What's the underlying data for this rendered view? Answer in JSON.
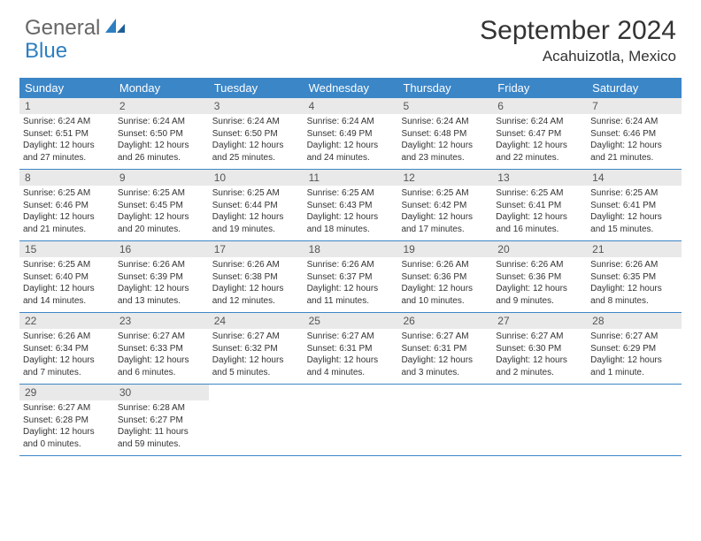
{
  "brand": {
    "part1": "General",
    "part2": "Blue",
    "color_general": "#666666",
    "color_blue": "#2d7fc1"
  },
  "title": "September 2024",
  "location": "Acahuizotla, Mexico",
  "header_color": "#3b86c7",
  "daynum_bg": "#e9e9e9",
  "days_of_week": [
    "Sunday",
    "Monday",
    "Tuesday",
    "Wednesday",
    "Thursday",
    "Friday",
    "Saturday"
  ],
  "weeks": [
    [
      {
        "n": "1",
        "sunrise": "6:24 AM",
        "sunset": "6:51 PM",
        "dl1": "12 hours",
        "dl2": "and 27 minutes."
      },
      {
        "n": "2",
        "sunrise": "6:24 AM",
        "sunset": "6:50 PM",
        "dl1": "12 hours",
        "dl2": "and 26 minutes."
      },
      {
        "n": "3",
        "sunrise": "6:24 AM",
        "sunset": "6:50 PM",
        "dl1": "12 hours",
        "dl2": "and 25 minutes."
      },
      {
        "n": "4",
        "sunrise": "6:24 AM",
        "sunset": "6:49 PM",
        "dl1": "12 hours",
        "dl2": "and 24 minutes."
      },
      {
        "n": "5",
        "sunrise": "6:24 AM",
        "sunset": "6:48 PM",
        "dl1": "12 hours",
        "dl2": "and 23 minutes."
      },
      {
        "n": "6",
        "sunrise": "6:24 AM",
        "sunset": "6:47 PM",
        "dl1": "12 hours",
        "dl2": "and 22 minutes."
      },
      {
        "n": "7",
        "sunrise": "6:24 AM",
        "sunset": "6:46 PM",
        "dl1": "12 hours",
        "dl2": "and 21 minutes."
      }
    ],
    [
      {
        "n": "8",
        "sunrise": "6:25 AM",
        "sunset": "6:46 PM",
        "dl1": "12 hours",
        "dl2": "and 21 minutes."
      },
      {
        "n": "9",
        "sunrise": "6:25 AM",
        "sunset": "6:45 PM",
        "dl1": "12 hours",
        "dl2": "and 20 minutes."
      },
      {
        "n": "10",
        "sunrise": "6:25 AM",
        "sunset": "6:44 PM",
        "dl1": "12 hours",
        "dl2": "and 19 minutes."
      },
      {
        "n": "11",
        "sunrise": "6:25 AM",
        "sunset": "6:43 PM",
        "dl1": "12 hours",
        "dl2": "and 18 minutes."
      },
      {
        "n": "12",
        "sunrise": "6:25 AM",
        "sunset": "6:42 PM",
        "dl1": "12 hours",
        "dl2": "and 17 minutes."
      },
      {
        "n": "13",
        "sunrise": "6:25 AM",
        "sunset": "6:41 PM",
        "dl1": "12 hours",
        "dl2": "and 16 minutes."
      },
      {
        "n": "14",
        "sunrise": "6:25 AM",
        "sunset": "6:41 PM",
        "dl1": "12 hours",
        "dl2": "and 15 minutes."
      }
    ],
    [
      {
        "n": "15",
        "sunrise": "6:25 AM",
        "sunset": "6:40 PM",
        "dl1": "12 hours",
        "dl2": "and 14 minutes."
      },
      {
        "n": "16",
        "sunrise": "6:26 AM",
        "sunset": "6:39 PM",
        "dl1": "12 hours",
        "dl2": "and 13 minutes."
      },
      {
        "n": "17",
        "sunrise": "6:26 AM",
        "sunset": "6:38 PM",
        "dl1": "12 hours",
        "dl2": "and 12 minutes."
      },
      {
        "n": "18",
        "sunrise": "6:26 AM",
        "sunset": "6:37 PM",
        "dl1": "12 hours",
        "dl2": "and 11 minutes."
      },
      {
        "n": "19",
        "sunrise": "6:26 AM",
        "sunset": "6:36 PM",
        "dl1": "12 hours",
        "dl2": "and 10 minutes."
      },
      {
        "n": "20",
        "sunrise": "6:26 AM",
        "sunset": "6:36 PM",
        "dl1": "12 hours",
        "dl2": "and 9 minutes."
      },
      {
        "n": "21",
        "sunrise": "6:26 AM",
        "sunset": "6:35 PM",
        "dl1": "12 hours",
        "dl2": "and 8 minutes."
      }
    ],
    [
      {
        "n": "22",
        "sunrise": "6:26 AM",
        "sunset": "6:34 PM",
        "dl1": "12 hours",
        "dl2": "and 7 minutes."
      },
      {
        "n": "23",
        "sunrise": "6:27 AM",
        "sunset": "6:33 PM",
        "dl1": "12 hours",
        "dl2": "and 6 minutes."
      },
      {
        "n": "24",
        "sunrise": "6:27 AM",
        "sunset": "6:32 PM",
        "dl1": "12 hours",
        "dl2": "and 5 minutes."
      },
      {
        "n": "25",
        "sunrise": "6:27 AM",
        "sunset": "6:31 PM",
        "dl1": "12 hours",
        "dl2": "and 4 minutes."
      },
      {
        "n": "26",
        "sunrise": "6:27 AM",
        "sunset": "6:31 PM",
        "dl1": "12 hours",
        "dl2": "and 3 minutes."
      },
      {
        "n": "27",
        "sunrise": "6:27 AM",
        "sunset": "6:30 PM",
        "dl1": "12 hours",
        "dl2": "and 2 minutes."
      },
      {
        "n": "28",
        "sunrise": "6:27 AM",
        "sunset": "6:29 PM",
        "dl1": "12 hours",
        "dl2": "and 1 minute."
      }
    ],
    [
      {
        "n": "29",
        "sunrise": "6:27 AM",
        "sunset": "6:28 PM",
        "dl1": "12 hours",
        "dl2": "and 0 minutes."
      },
      {
        "n": "30",
        "sunrise": "6:28 AM",
        "sunset": "6:27 PM",
        "dl1": "11 hours",
        "dl2": "and 59 minutes."
      },
      null,
      null,
      null,
      null,
      null
    ]
  ],
  "labels": {
    "sunrise": "Sunrise:",
    "sunset": "Sunset:",
    "daylight": "Daylight:"
  }
}
